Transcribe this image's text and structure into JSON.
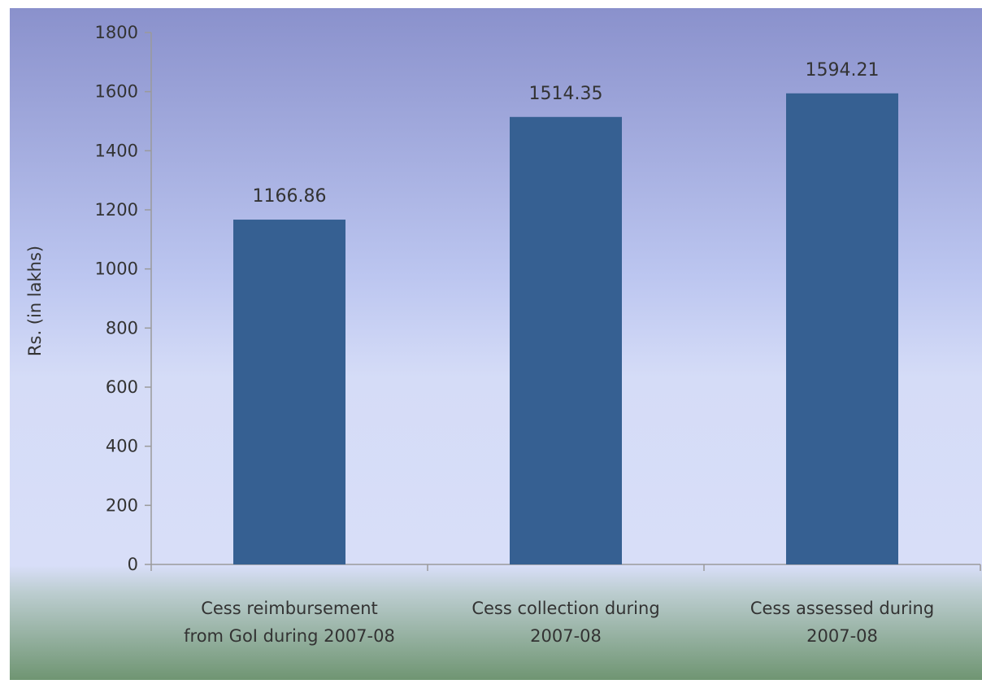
{
  "chart_data": {
    "type": "bar",
    "title": "",
    "xlabel": "",
    "ylabel": "Rs. (in lakhs)",
    "ylim": [
      0,
      1800
    ],
    "yticks": [
      0,
      200,
      400,
      600,
      800,
      1000,
      1200,
      1400,
      1600,
      1800
    ],
    "categories": [
      [
        "Cess reimbursement",
        "from GoI during 2007-08"
      ],
      [
        "Cess collection during",
        "2007-08"
      ],
      [
        "Cess assessed during",
        "2007-08"
      ]
    ],
    "values": [
      1166.86,
      1514.35,
      1594.21
    ],
    "data_labels": [
      "1166.86",
      "1514.35",
      "1594.21"
    ],
    "grid": false,
    "legend": "none",
    "colors": {
      "bar": "#366092",
      "background_top": "#8a91cc",
      "background_mid": "#d8def8",
      "background_bottom": "#6f9572",
      "axis": "#9a9a9a",
      "text": "#333333"
    }
  }
}
